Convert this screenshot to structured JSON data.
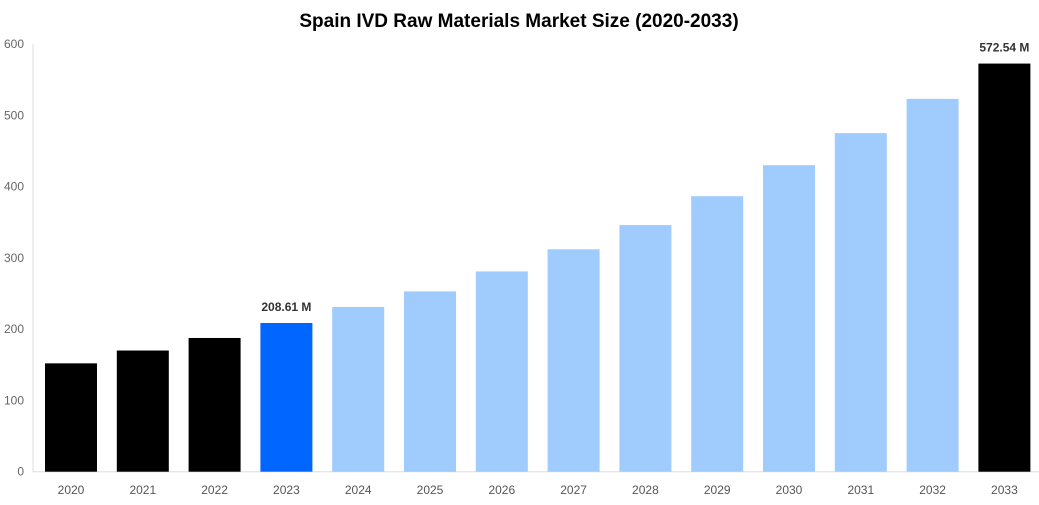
{
  "chart_data": {
    "type": "bar",
    "title": "Spain IVD Raw Materials Market Size (2020-2033)",
    "xlabel": "",
    "ylabel": "",
    "ylim": [
      0,
      600
    ],
    "yticks": [
      0,
      100,
      200,
      300,
      400,
      500,
      600
    ],
    "grid": false,
    "categories": [
      "2020",
      "2021",
      "2022",
      "2023",
      "2024",
      "2025",
      "2026",
      "2027",
      "2028",
      "2029",
      "2030",
      "2031",
      "2032",
      "2033"
    ],
    "values": [
      152,
      170,
      187.6,
      208.61,
      231,
      253,
      281,
      312,
      346,
      386.5,
      430,
      475,
      523,
      572.54
    ],
    "colors": [
      "#000000",
      "#000000",
      "#000000",
      "#0066ff",
      "#a0cbfd",
      "#a0cbfd",
      "#a0cbfd",
      "#a0cbfd",
      "#a0cbfd",
      "#a0cbfd",
      "#a0cbfd",
      "#a0cbfd",
      "#a0cbfd",
      "#000000"
    ],
    "data_labels": [
      {
        "category": "2023",
        "text": "208.61 M"
      },
      {
        "category": "2033",
        "text": "572.54 M"
      }
    ]
  }
}
